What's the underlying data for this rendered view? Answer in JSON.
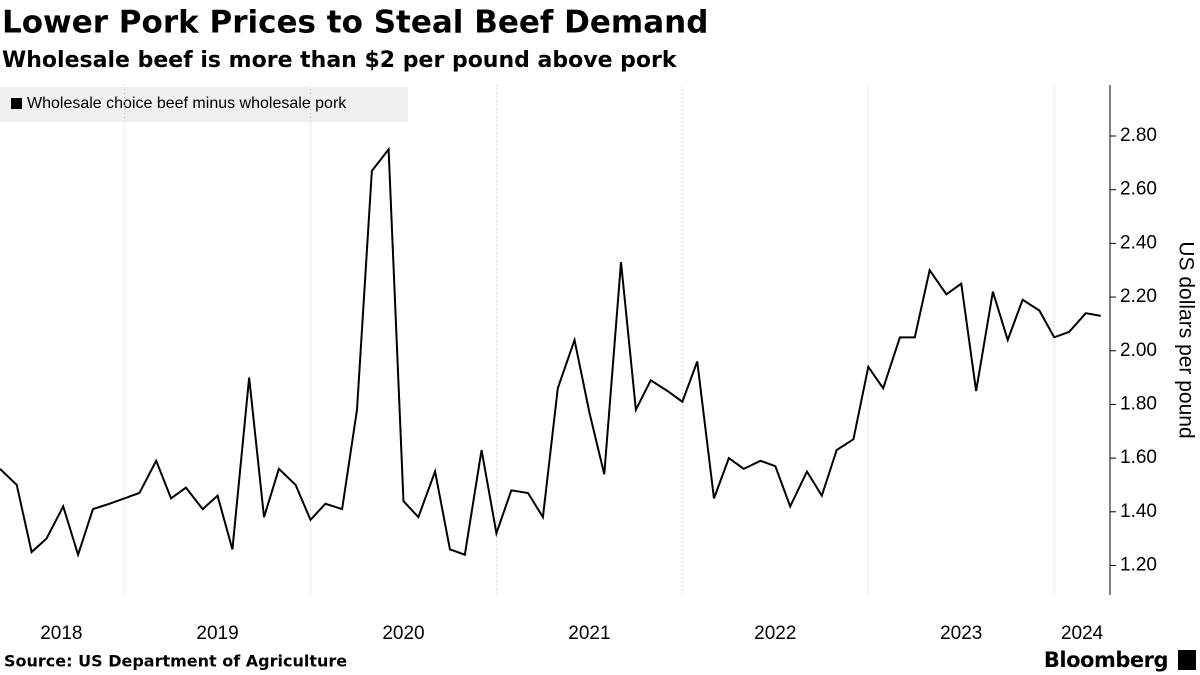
{
  "chart_data": {
    "type": "line",
    "title": "Lower Pork Prices to Steal Beef Demand",
    "subtitle": "Wholesale beef is more than $2 per pound above pork",
    "y_label": "US dollars per pound",
    "source": "Source: US Department of Agriculture",
    "brand": "Bloomberg",
    "x": [
      2018.33,
      2018.42,
      2018.5,
      2018.58,
      2018.67,
      2018.75,
      2018.83,
      2018.92,
      2019.0,
      2019.08,
      2019.17,
      2019.25,
      2019.33,
      2019.42,
      2019.5,
      2019.58,
      2019.67,
      2019.75,
      2019.83,
      2019.92,
      2020.0,
      2020.08,
      2020.17,
      2020.25,
      2020.33,
      2020.42,
      2020.5,
      2020.58,
      2020.67,
      2020.75,
      2020.83,
      2020.92,
      2021.0,
      2021.08,
      2021.17,
      2021.25,
      2021.33,
      2021.42,
      2021.5,
      2021.58,
      2021.67,
      2021.75,
      2021.83,
      2021.92,
      2022.0,
      2022.08,
      2022.17,
      2022.25,
      2022.33,
      2022.42,
      2022.5,
      2022.58,
      2022.67,
      2022.75,
      2022.83,
      2022.92,
      2023.0,
      2023.08,
      2023.17,
      2023.25,
      2023.33,
      2023.42,
      2023.5,
      2023.58,
      2023.67,
      2023.75,
      2023.83,
      2023.92,
      2024.0,
      2024.08,
      2024.17,
      2024.25
    ],
    "series": [
      {
        "name": "Wholesale choice beef minus wholesale pork",
        "color": "#000000",
        "values": [
          1.56,
          1.5,
          1.25,
          1.3,
          1.42,
          1.24,
          1.41,
          1.43,
          1.45,
          1.47,
          1.59,
          1.45,
          1.49,
          1.41,
          1.46,
          1.26,
          1.9,
          1.38,
          1.56,
          1.5,
          1.37,
          1.43,
          1.41,
          1.78,
          2.67,
          2.75,
          1.44,
          1.38,
          1.55,
          1.26,
          1.24,
          1.63,
          1.32,
          1.48,
          1.47,
          1.38,
          1.86,
          2.04,
          1.77,
          1.54,
          2.33,
          1.78,
          1.89,
          1.85,
          1.81,
          1.96,
          1.45,
          1.6,
          1.56,
          1.59,
          1.57,
          1.42,
          1.55,
          1.46,
          1.63,
          1.67,
          1.94,
          1.86,
          2.05,
          2.05,
          2.3,
          2.21,
          2.25,
          1.85,
          2.22,
          2.04,
          2.19,
          2.15,
          2.05,
          2.07,
          2.14,
          2.13
        ]
      }
    ],
    "xlim": [
      2018.33,
      2024.3
    ],
    "xticks": [
      {
        "value": 2018.66,
        "label": "2018"
      },
      {
        "value": 2019.5,
        "label": "2019"
      },
      {
        "value": 2020.5,
        "label": "2020"
      },
      {
        "value": 2021.5,
        "label": "2021"
      },
      {
        "value": 2022.5,
        "label": "2022"
      },
      {
        "value": 2023.5,
        "label": "2023"
      },
      {
        "value": 2024.15,
        "label": "2024"
      }
    ],
    "xgrid": [
      2019,
      2020,
      2021,
      2022,
      2023,
      2024
    ],
    "ylim": [
      1.09,
      2.99
    ],
    "yticks": [
      {
        "value": 1.2,
        "label": "1.20"
      },
      {
        "value": 1.4,
        "label": "1.40"
      },
      {
        "value": 1.6,
        "label": "1.60"
      },
      {
        "value": 1.8,
        "label": "1.80"
      },
      {
        "value": 2.0,
        "label": "2.00"
      },
      {
        "value": 2.2,
        "label": "2.20"
      },
      {
        "value": 2.4,
        "label": "2.40"
      },
      {
        "value": 2.6,
        "label": "2.60"
      },
      {
        "value": 2.8,
        "label": "2.80"
      }
    ]
  }
}
